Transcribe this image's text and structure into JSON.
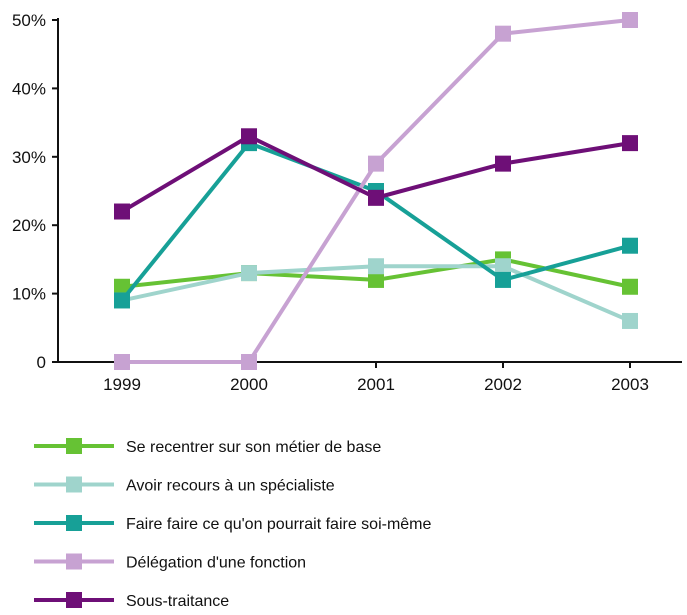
{
  "chart_data": {
    "type": "line",
    "title": "",
    "xlabel": "",
    "ylabel": "",
    "categories": [
      "1999",
      "2000",
      "2001",
      "2002",
      "2003"
    ],
    "y_ticks": [
      0,
      10,
      20,
      30,
      40,
      50
    ],
    "y_tick_labels": [
      "0",
      "10%",
      "20%",
      "30%",
      "40%",
      "50%"
    ],
    "ylim": [
      0,
      50
    ],
    "grid": false,
    "legend_position": "bottom",
    "series": [
      {
        "name": "Se recentrer sur son métier de base",
        "color": "#66c234",
        "values": [
          11,
          13,
          12,
          15,
          11
        ]
      },
      {
        "name": "Avoir recours à un spécialiste",
        "color": "#9fd4cc",
        "values": [
          9,
          13,
          14,
          14,
          6
        ]
      },
      {
        "name": "Faire faire ce qu'on pourrait faire soi-même",
        "color": "#17a097",
        "values": [
          9,
          32,
          25,
          12,
          17
        ]
      },
      {
        "name": "Délégation d'une fonction",
        "color": "#c7a2d2",
        "values": [
          0,
          0,
          29,
          48,
          50
        ]
      },
      {
        "name": "Sous-traitance",
        "color": "#6e0f77",
        "values": [
          22,
          33,
          24,
          29,
          32
        ]
      }
    ]
  }
}
